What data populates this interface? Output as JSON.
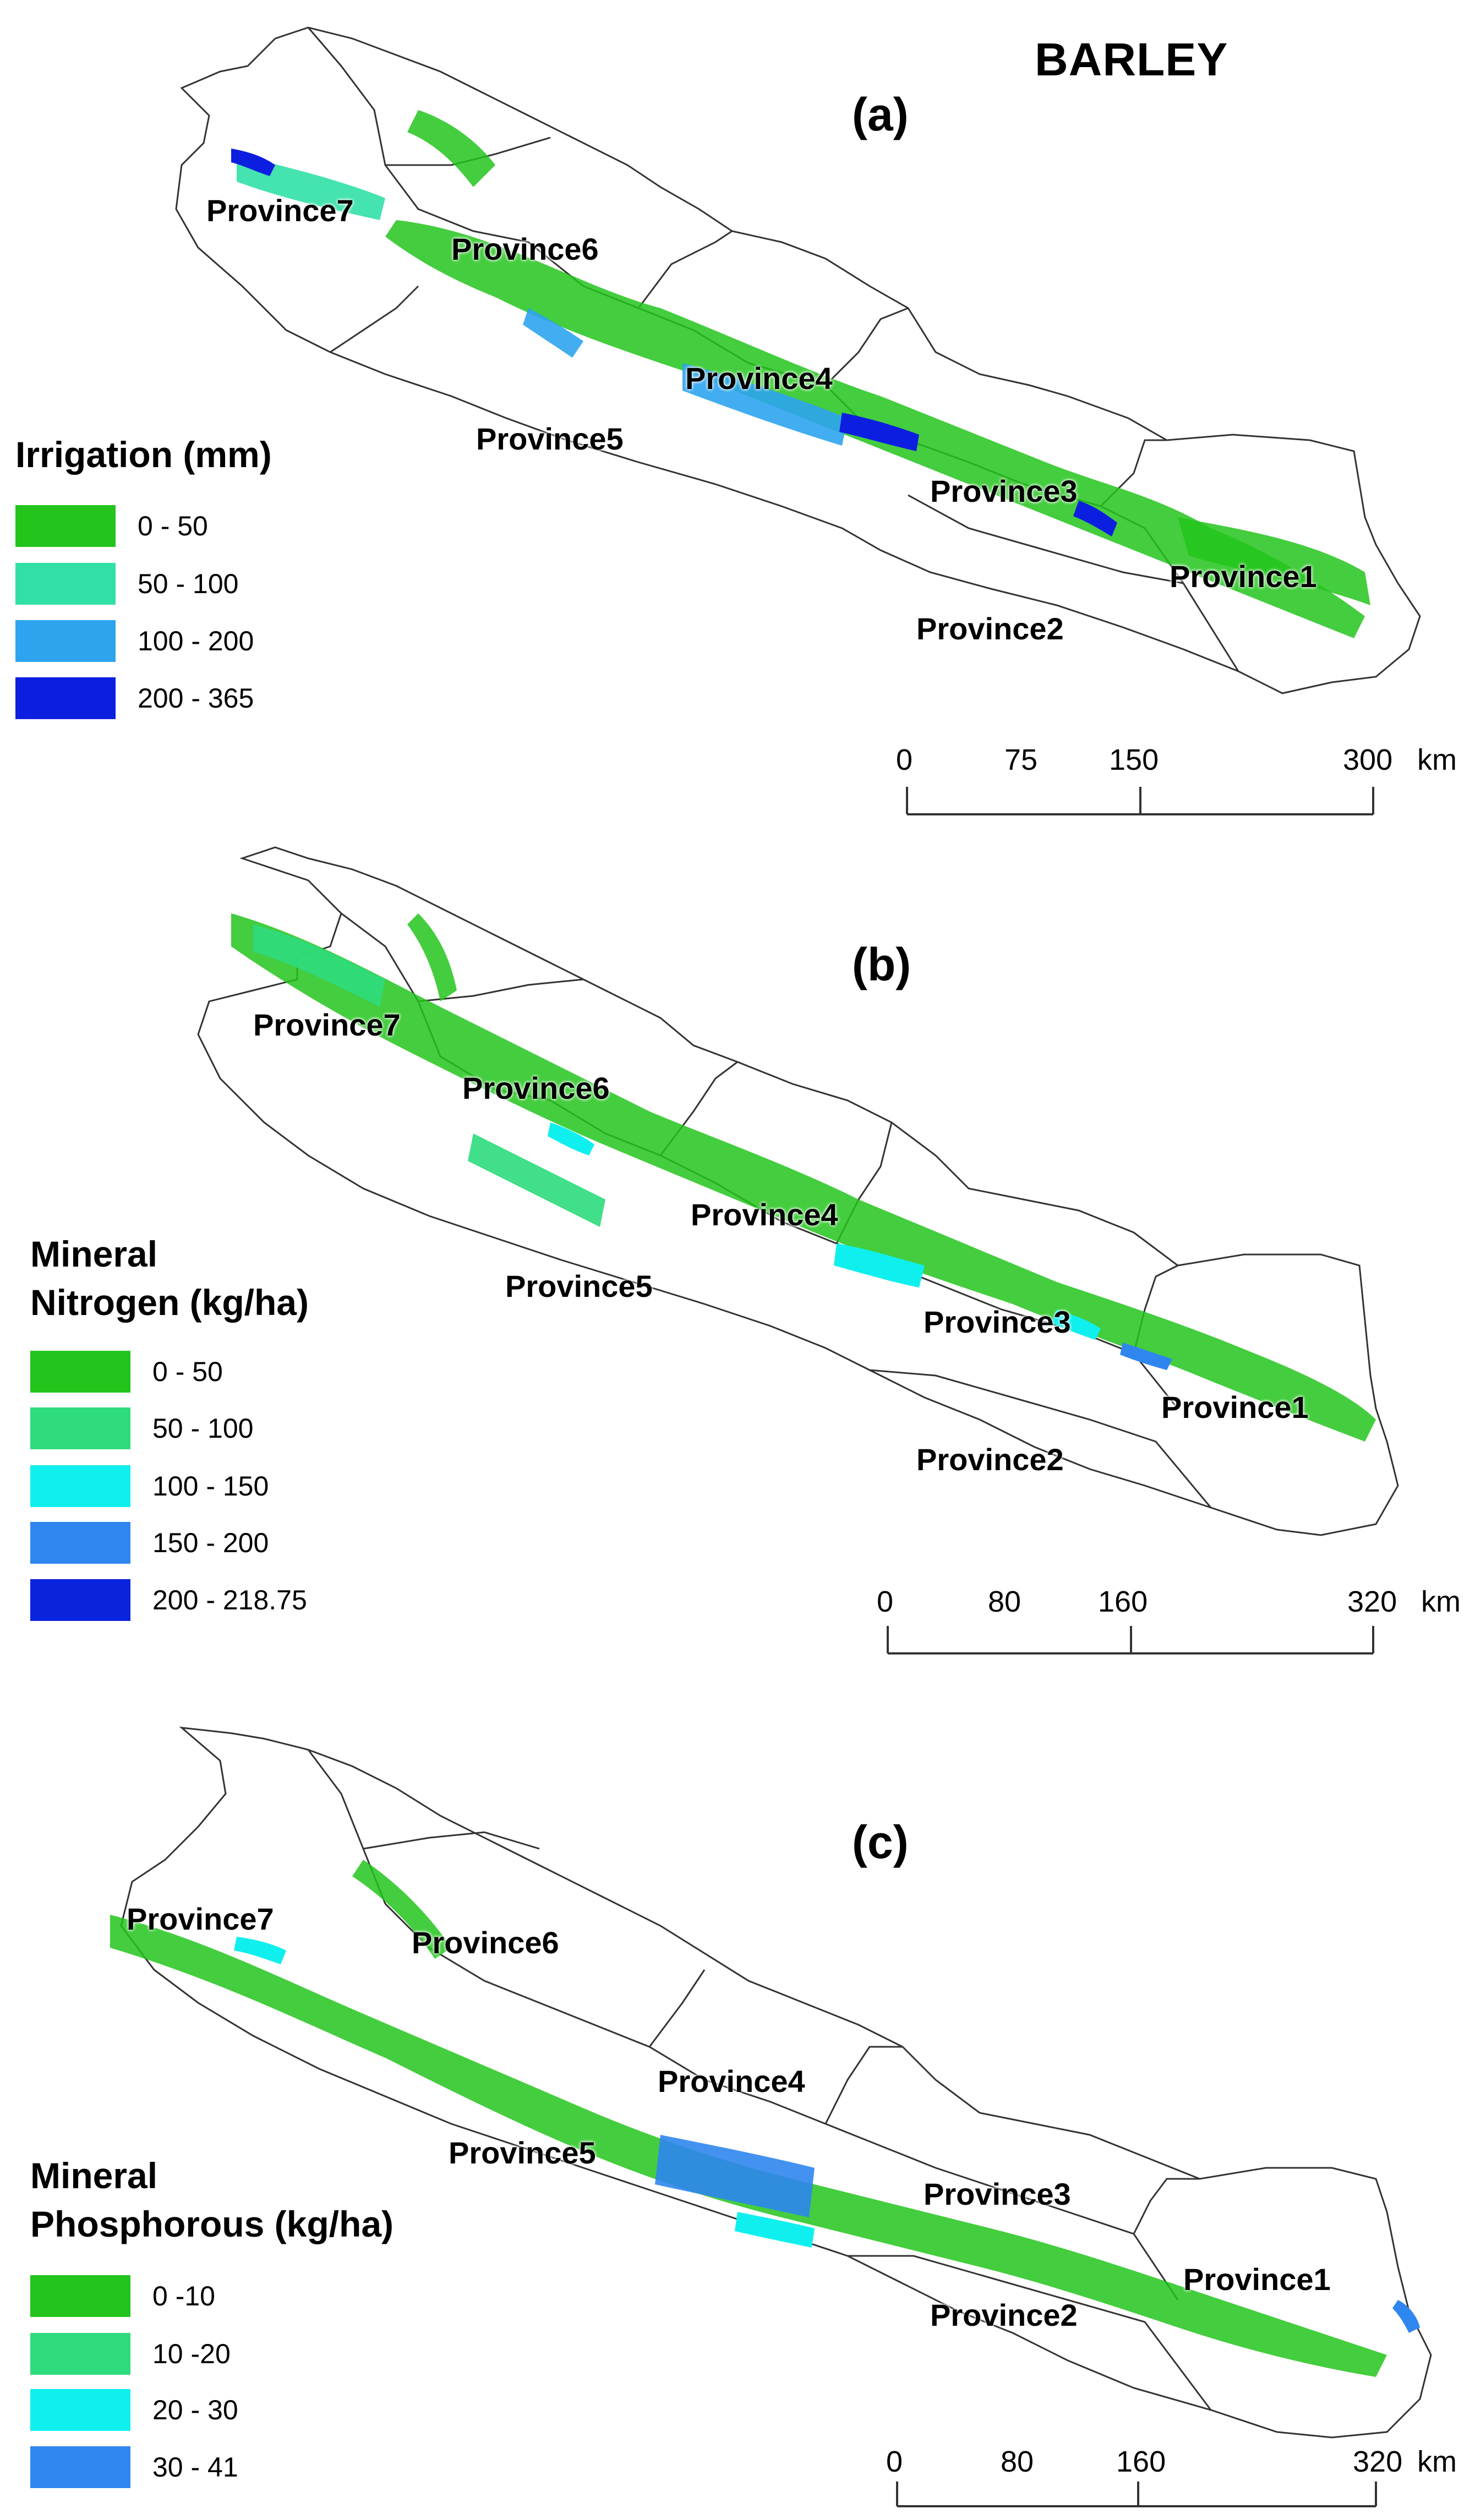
{
  "title": "BARLEY",
  "panels": [
    {
      "label": "(a)",
      "legend_title_lines": [
        "Irrigation (mm)"
      ],
      "legend": [
        {
          "label": "0 - 50",
          "color": "#23c41c"
        },
        {
          "label": "50 - 100",
          "color": "#31e0a6"
        },
        {
          "label": "100 - 200",
          "color": "#2ea4ee"
        },
        {
          "label": "200 - 365",
          "color": "#0c1ee0"
        }
      ],
      "provinces": [
        "Province7",
        "Province6",
        "Province4",
        "Province5",
        "Province3",
        "Province1",
        "Province2"
      ],
      "scale": {
        "ticks": [
          "0",
          "75",
          "150",
          "300"
        ],
        "unit": "km"
      }
    },
    {
      "label": "(b)",
      "legend_title_lines": [
        "Mineral",
        "Nitrogen (kg/ha)"
      ],
      "legend": [
        {
          "label": "0 - 50",
          "color": "#23c41c"
        },
        {
          "label": "50 - 100",
          "color": "#2edb7d"
        },
        {
          "label": "100 - 150",
          "color": "#0ff0ee"
        },
        {
          "label": "150 - 200",
          "color": "#2f86ee"
        },
        {
          "label": "200 - 218.75",
          "color": "#0a23dd"
        }
      ],
      "provinces": [
        "Province7",
        "Province6",
        "Province4",
        "Province5",
        "Province3",
        "Province1",
        "Province2"
      ],
      "scale": {
        "ticks": [
          "0",
          "80",
          "160",
          "320"
        ],
        "unit": "km"
      }
    },
    {
      "label": "(c)",
      "legend_title_lines": [
        "Mineral",
        "Phosphorous (kg/ha)"
      ],
      "legend": [
        {
          "label": "0 -10",
          "color": "#23c41c"
        },
        {
          "label": "10 -20",
          "color": "#2edb7d"
        },
        {
          "label": "20 - 30",
          "color": "#0ff0ee"
        },
        {
          "label": "30 - 41",
          "color": "#2f86ee"
        }
      ],
      "provinces": [
        "Province7",
        "Province6",
        "Province4",
        "Province5",
        "Province3",
        "Province1",
        "Province2"
      ],
      "scale": {
        "ticks": [
          "0",
          "80",
          "160",
          "320"
        ],
        "unit": "km"
      }
    }
  ]
}
